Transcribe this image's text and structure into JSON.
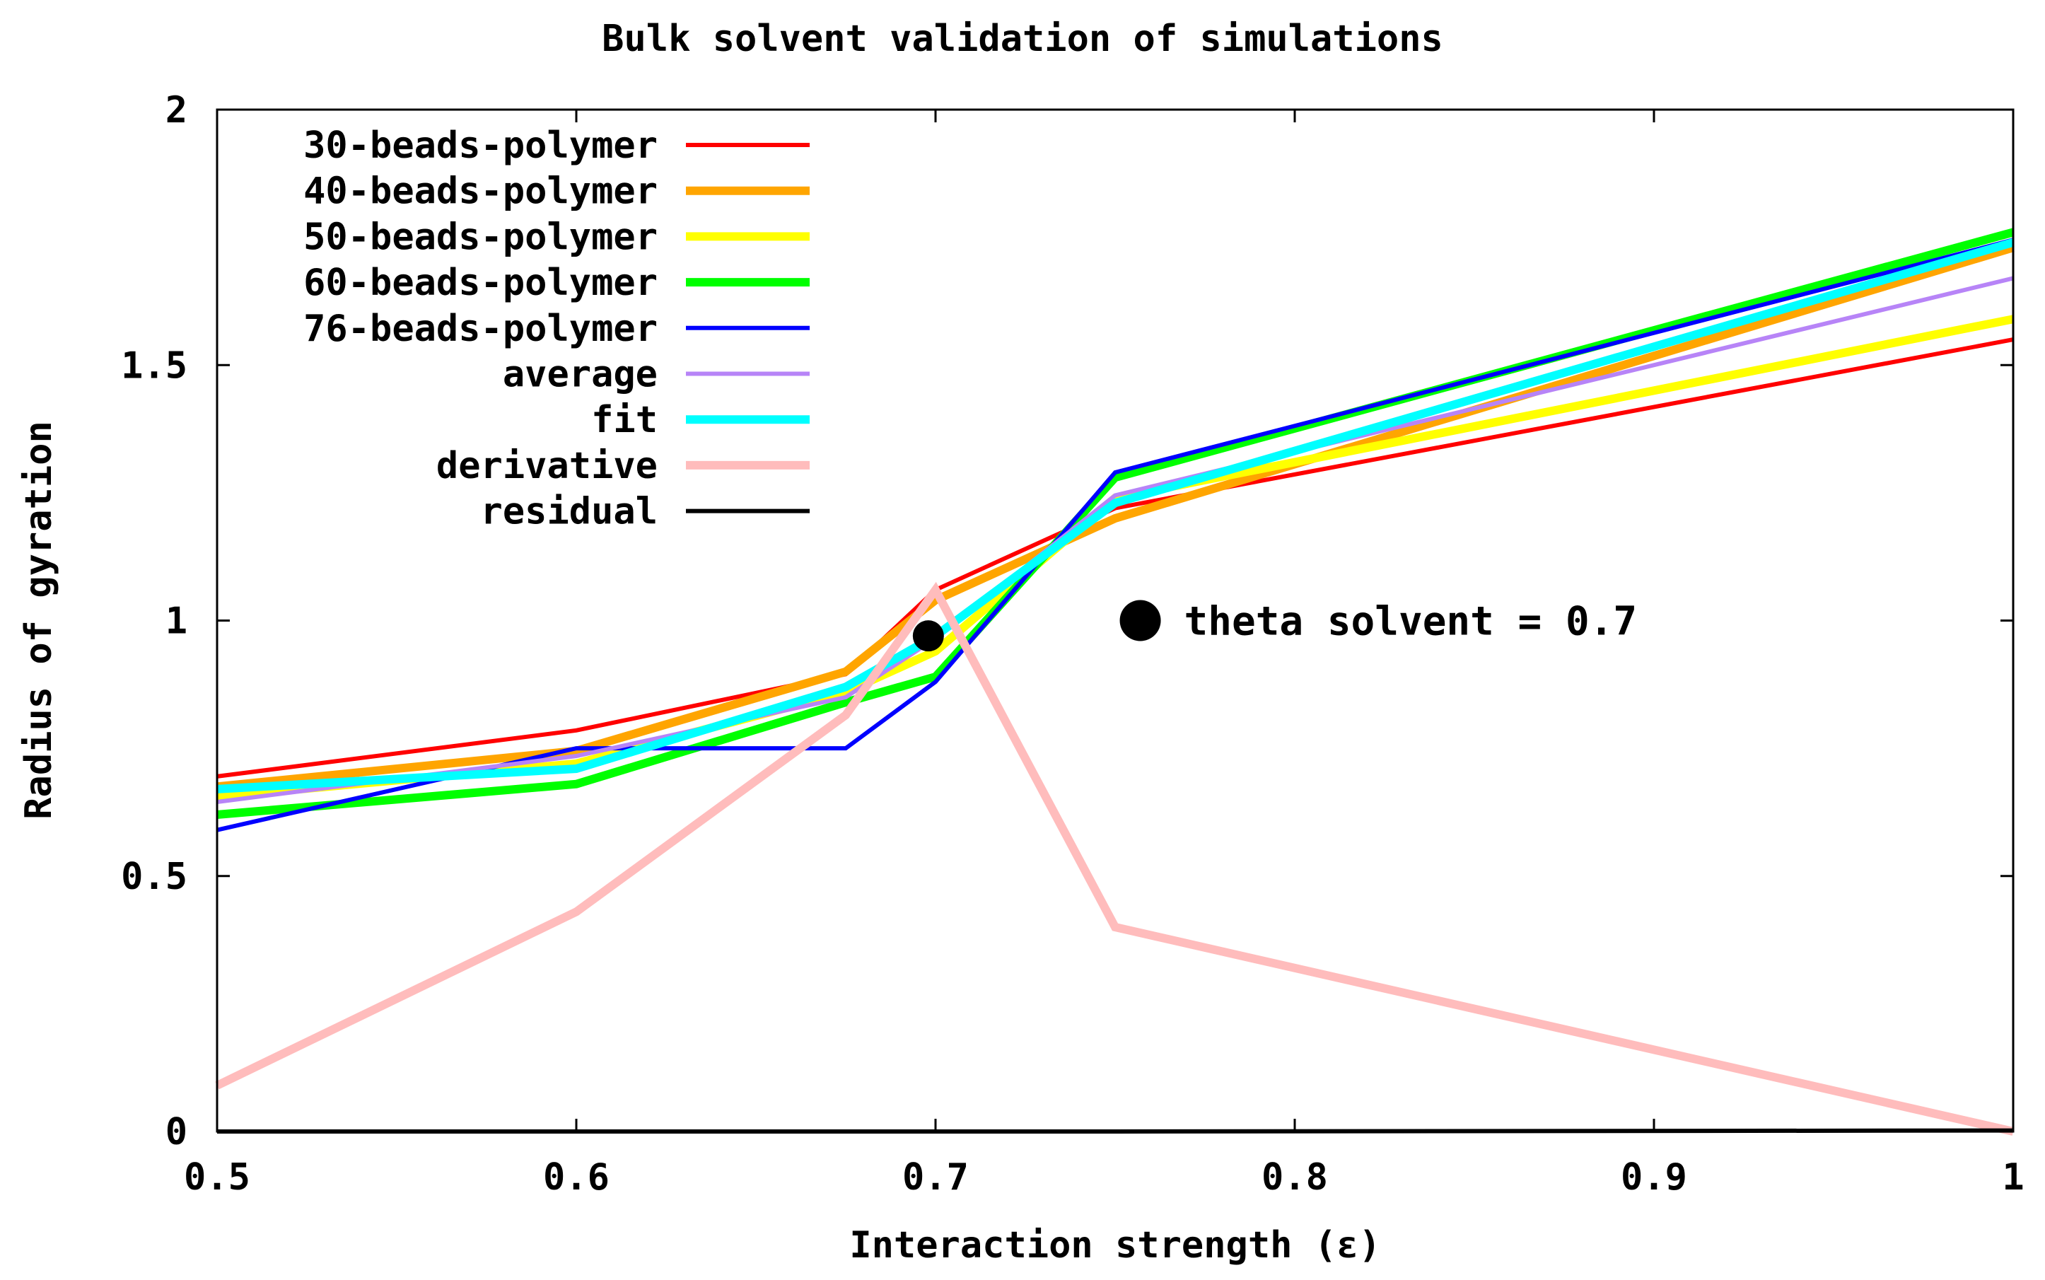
{
  "chart_data": {
    "type": "line",
    "title": "Bulk solvent validation of simulations",
    "xlabel": "Interaction strength (ε)",
    "ylabel": "Radius of gyration",
    "xlim": [
      0.5,
      1.0
    ],
    "ylim": [
      0,
      2
    ],
    "xticks": [
      0.5,
      0.6,
      0.7,
      0.8,
      0.9,
      1.0
    ],
    "xtick_labels": [
      "0.5",
      "0.6",
      "0.7",
      "0.8",
      "0.9",
      "1"
    ],
    "yticks": [
      0,
      0.5,
      1.0,
      1.5,
      2.0
    ],
    "ytick_labels": [
      "0",
      "0.5",
      "1",
      "1.5",
      "2"
    ],
    "grid": false,
    "legend_position": "top-left",
    "series": [
      {
        "name": "30-beads-polymer",
        "color": "#ff0000",
        "width": 6,
        "x": [
          0.5,
          0.6,
          0.675,
          0.7,
          0.75,
          1.0
        ],
        "y": [
          0.695,
          0.785,
          0.895,
          1.06,
          1.22,
          1.55
        ]
      },
      {
        "name": "40-beads-polymer",
        "color": "#ffa500",
        "width": 12,
        "x": [
          0.5,
          0.6,
          0.675,
          0.7,
          0.75,
          1.0
        ],
        "y": [
          0.675,
          0.745,
          0.9,
          1.04,
          1.2,
          1.73
        ]
      },
      {
        "name": "50-beads-polymer",
        "color": "#ffff00",
        "width": 12,
        "x": [
          0.5,
          0.6,
          0.675,
          0.7,
          0.75,
          1.0
        ],
        "y": [
          0.655,
          0.72,
          0.86,
          0.94,
          1.24,
          1.59
        ]
      },
      {
        "name": "60-beads-polymer",
        "color": "#00ff00",
        "width": 12,
        "x": [
          0.5,
          0.6,
          0.675,
          0.7,
          0.75,
          1.0
        ],
        "y": [
          0.62,
          0.68,
          0.84,
          0.89,
          1.28,
          1.76
        ]
      },
      {
        "name": "76-beads-polymer",
        "color": "#0000ff",
        "width": 6,
        "x": [
          0.5,
          0.6,
          0.675,
          0.7,
          0.75,
          1.0
        ],
        "y": [
          0.59,
          0.75,
          0.75,
          0.88,
          1.29,
          1.745
        ]
      },
      {
        "name": "average",
        "color": "#b784f7",
        "width": 6,
        "x": [
          0.5,
          0.6,
          0.675,
          0.7,
          0.75,
          1.0
        ],
        "y": [
          0.645,
          0.735,
          0.85,
          0.965,
          1.245,
          1.67
        ]
      },
      {
        "name": "fit",
        "color": "#00ffff",
        "width": 12,
        "x": [
          0.5,
          0.6,
          0.675,
          0.7,
          0.75,
          1.0
        ],
        "y": [
          0.67,
          0.71,
          0.87,
          0.97,
          1.23,
          1.74
        ]
      },
      {
        "name": "derivative",
        "color": "#ffbcbc",
        "width": 12,
        "x": [
          0.5,
          0.6,
          0.675,
          0.7,
          0.75,
          1.0
        ],
        "y": [
          0.09,
          0.43,
          0.815,
          1.06,
          0.4,
          0.0
        ]
      },
      {
        "name": "residual",
        "color": "#000000",
        "width": 6,
        "x": [
          0.5,
          0.6,
          0.675,
          0.7,
          0.75,
          1.0
        ],
        "y": [
          0.0,
          0.0,
          0.0,
          0.0,
          0.0,
          0.002
        ]
      }
    ],
    "points": [
      {
        "name": "theta-point",
        "x": 0.698,
        "y": 0.97,
        "color": "#000000"
      }
    ],
    "annotations": [
      {
        "text": "theta solvent = 0.7",
        "marker_x": 0.757,
        "marker_y": 1.0
      }
    ]
  }
}
